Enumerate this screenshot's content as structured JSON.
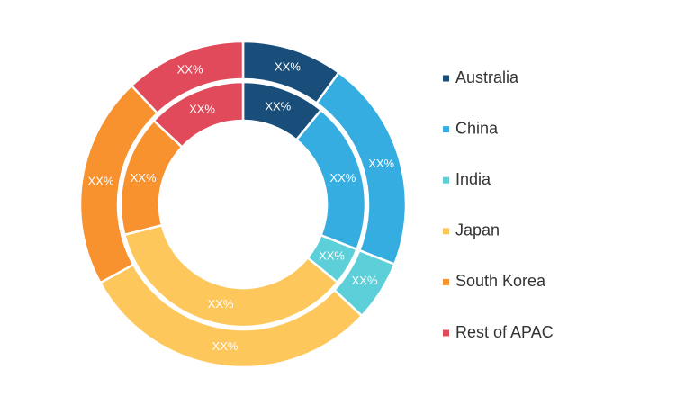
{
  "chart_data": {
    "type": "donut",
    "categories": [
      "Australia",
      "China",
      "India",
      "Japan",
      "South Korea",
      "Rest of APAC"
    ],
    "colors": [
      "#1a4e7a",
      "#35ade0",
      "#5ccfd8",
      "#fdc75c",
      "#f7922f",
      "#e04a5a"
    ],
    "series": [
      {
        "values": [
          10,
          21,
          6,
          30,
          21,
          12
        ],
        "value_labels": [
          "XX%",
          "XX%",
          "XX%",
          "XX%",
          "XX%",
          "XX%"
        ]
      },
      {
        "values": [
          11,
          20,
          5,
          35,
          16,
          13
        ],
        "value_labels": [
          "XX%",
          "XX%",
          "XX%",
          "XX%",
          "XX%",
          "XX%"
        ]
      }
    ],
    "legend": "right"
  }
}
